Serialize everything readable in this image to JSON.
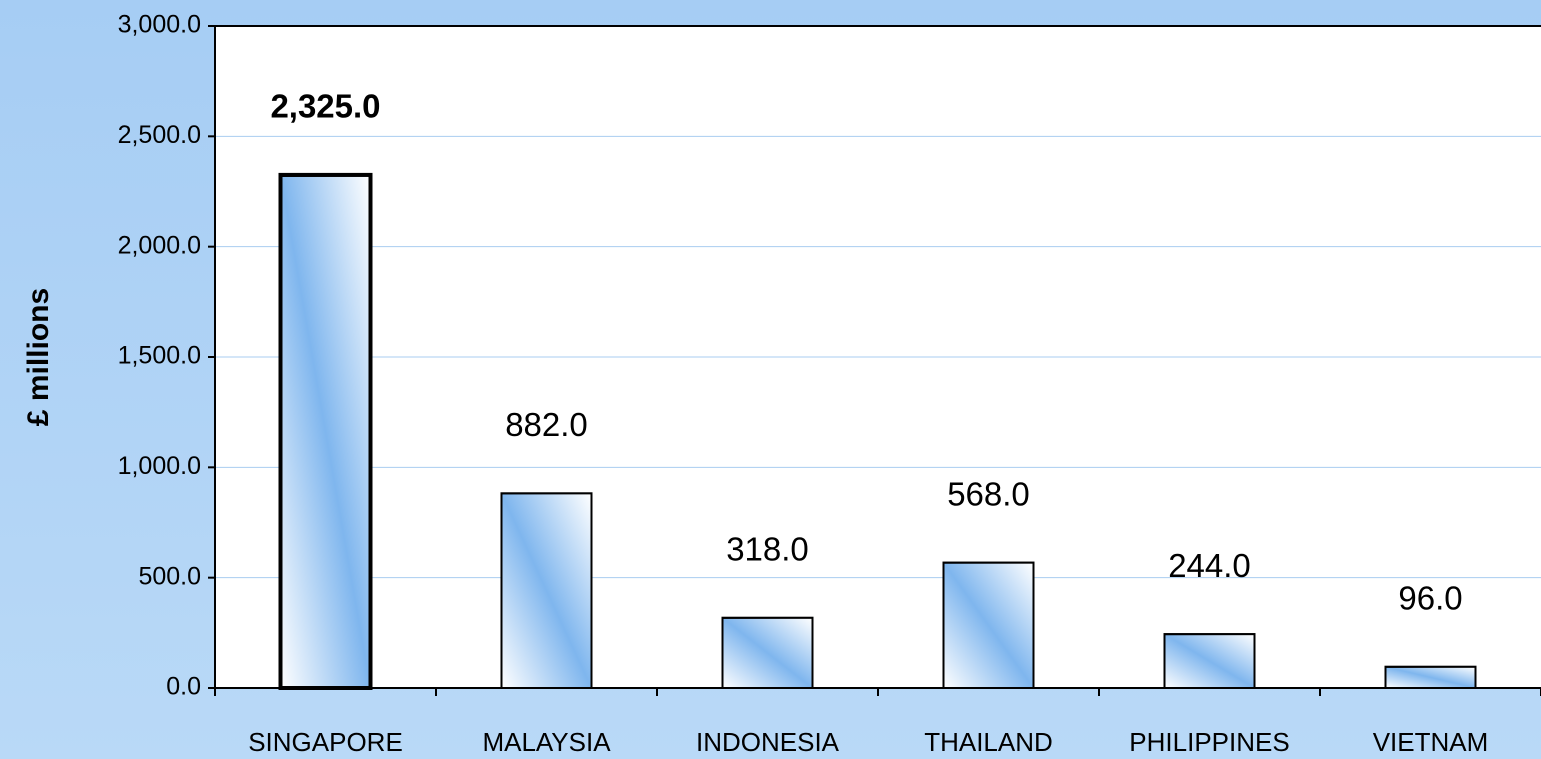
{
  "chart_data": {
    "type": "bar",
    "y_label": "£ millions",
    "categories": [
      "SINGAPORE",
      "MALAYSIA",
      "INDONESIA",
      "THAILAND",
      "PHILIPPINES",
      "VIETNAM"
    ],
    "values": [
      2325,
      882,
      318,
      568,
      244,
      96
    ],
    "value_labels": [
      "2,325.0",
      "882.0",
      "318.0",
      "568.0",
      "244.0",
      "96.0"
    ],
    "color": "#7fb6ee",
    "ylim": [
      0,
      3000
    ],
    "yticks": [
      {
        "value": 0,
        "label": "0.0"
      },
      {
        "value": 500,
        "label": "500.0"
      },
      {
        "value": 1000,
        "label": "1,000.0"
      },
      {
        "value": 1500,
        "label": "1,500.0"
      },
      {
        "value": 2000,
        "label": "2,000.0"
      },
      {
        "value": 2500,
        "label": "2,500.0"
      },
      {
        "value": 3000,
        "label": "3,000.0"
      }
    ],
    "grid": true
  }
}
